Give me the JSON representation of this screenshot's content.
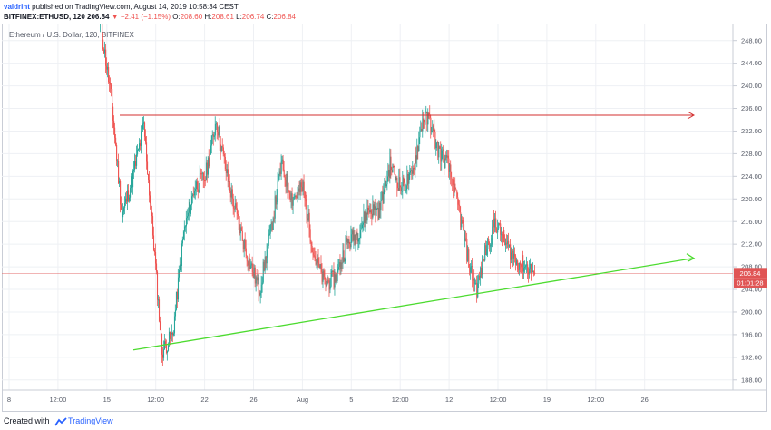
{
  "header": {
    "user": "valdrint",
    "published": "published on TradingView.com, August 14, 2019 10:58:34 CEST",
    "symbol": "BITFINEX:ETHUSD, 120",
    "last": "206.84",
    "change": "▼ −2.41 (−1.15%)",
    "o_label": "O:",
    "o_value": "208.60",
    "h_label": "H:",
    "h_value": "208.61",
    "l_label": "L:",
    "l_value": "206.74",
    "c_label": "C:",
    "c_value": "206.84"
  },
  "chart_title": "Ethereum / U.S. Dollar, 120, BITFINEX",
  "price_label": "206.84",
  "countdown_label": "01:01:28",
  "footer": {
    "created": "Created with",
    "brand": "TradingView"
  },
  "colors": {
    "up": "#26a69a",
    "down": "#ef5350",
    "resistance": "#d32f2f",
    "support": "#4cdb2f",
    "last_price": "#e05555"
  },
  "chart_data": {
    "type": "candlestick",
    "title": "Ethereum / U.S. Dollar, 120, BITFINEX",
    "x_ticks": [
      "8",
      "12:00",
      "15",
      "12:00",
      "22",
      "26",
      "Aug",
      "5",
      "12:00",
      "12",
      "12:00",
      "19",
      "12:00",
      "26"
    ],
    "y_ticks": [
      "248.00",
      "244.00",
      "240.00",
      "236.00",
      "232.00",
      "228.00",
      "224.00",
      "220.00",
      "216.00",
      "212.00",
      "208.00",
      "204.00",
      "200.00",
      "196.00",
      "192.00",
      "188.00"
    ],
    "ylim": [
      186.2,
      251
    ],
    "last_price": 206.84,
    "ohlc_keypoints": [
      [
        0,
        251,
        251
      ],
      [
        3,
        246,
        238
      ],
      [
        6,
        237,
        217
      ],
      [
        9,
        215,
        224
      ],
      [
        12,
        232,
        233
      ],
      [
        15,
        228,
        210
      ],
      [
        17,
        200,
        193
      ],
      [
        20,
        195,
        196
      ],
      [
        23,
        203,
        214
      ],
      [
        26,
        218,
        222
      ],
      [
        29,
        229,
        224
      ],
      [
        32,
        230,
        234
      ],
      [
        35,
        226,
        224
      ],
      [
        38,
        222,
        216
      ],
      [
        41,
        214,
        209
      ],
      [
        44,
        206,
        204
      ],
      [
        47,
        209,
        214
      ],
      [
        50,
        218,
        226
      ],
      [
        53,
        224,
        220
      ],
      [
        56,
        218,
        222
      ],
      [
        59,
        216,
        210
      ],
      [
        62,
        206,
        205
      ],
      [
        65,
        208,
        206
      ],
      [
        68,
        208,
        212
      ],
      [
        71,
        212,
        214
      ],
      [
        74,
        213,
        218
      ],
      [
        77,
        220,
        218
      ],
      [
        80,
        222,
        226
      ],
      [
        83,
        226,
        222
      ],
      [
        86,
        222,
        224
      ],
      [
        89,
        229,
        234
      ],
      [
        91,
        233,
        234
      ],
      [
        93,
        232,
        229
      ],
      [
        96,
        228,
        226
      ],
      [
        99,
        224,
        218
      ],
      [
        102,
        216,
        208
      ],
      [
        104,
        206,
        204
      ],
      [
        106,
        206,
        210
      ],
      [
        109,
        212,
        216
      ],
      [
        112,
        215,
        212
      ],
      [
        115,
        212,
        209
      ],
      [
        118,
        210,
        208
      ],
      [
        120,
        208,
        206.8
      ]
    ],
    "annotations": [
      {
        "type": "horizontal-ray",
        "price": 234.8,
        "color": "#d32f2f",
        "arrow": true
      },
      {
        "type": "trendline",
        "from_price": 193.3,
        "to_price": 209.5,
        "color": "#4cdb2f",
        "arrow": true
      }
    ],
    "grid": true,
    "legend_placement": "top-left"
  }
}
